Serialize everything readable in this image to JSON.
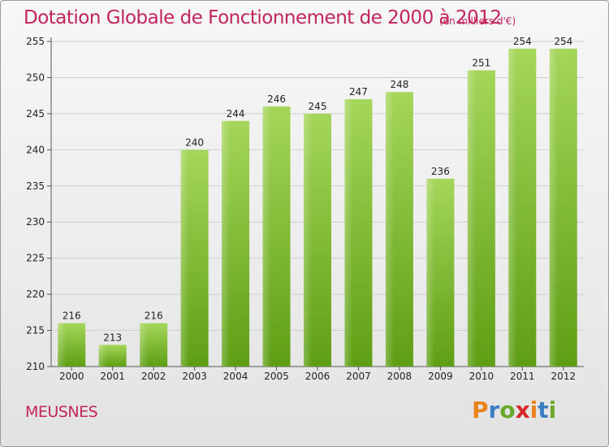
{
  "header": {
    "title": "Dotation Globale de Fonctionnement de 2000 à 2012",
    "subtitle": "(en milliers d'€)"
  },
  "footer": {
    "commune": "MEUSNES",
    "logo_text": "Proxiti",
    "logo_colors": [
      "#e8841a",
      "#3a7fc4",
      "#6aaa2a",
      "#d6262a",
      "#e8841a",
      "#3a7fc4",
      "#6aaa2a"
    ]
  },
  "colors": {
    "title": "#c4245e",
    "bar_light": "#a5d65a",
    "bar_dark": "#5e9e14",
    "grid": "#cfcfcf"
  },
  "chart_data": {
    "type": "bar",
    "title": "Dotation Globale de Fonctionnement de 2000 à 2012",
    "subtitle": "(en milliers d'€)",
    "xlabel": "",
    "ylabel": "",
    "categories": [
      "2000",
      "2001",
      "2002",
      "2003",
      "2004",
      "2005",
      "2006",
      "2007",
      "2008",
      "2009",
      "2010",
      "2011",
      "2012"
    ],
    "values": [
      216,
      213,
      216,
      240,
      244,
      246,
      245,
      247,
      248,
      236,
      251,
      254,
      254
    ],
    "ylim": [
      210,
      255
    ],
    "yticks": [
      210,
      215,
      220,
      225,
      230,
      235,
      240,
      245,
      250,
      255
    ],
    "grid": true,
    "legend": "none"
  }
}
